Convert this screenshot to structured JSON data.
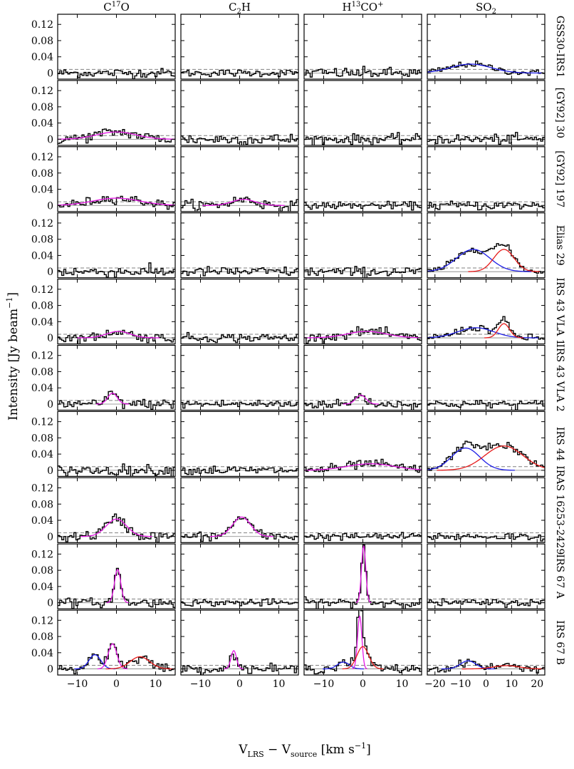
{
  "chart_data": {
    "type": "line",
    "grid": false,
    "ylabel": "Intensity [Jy beam^-1]",
    "xlabel": "V_LRS − V_source [km s^-1]",
    "columns": [
      {
        "label": "C17O",
        "xlim": [
          -15,
          15
        ],
        "xticks": [
          -10,
          0,
          10
        ],
        "xtick_labels": [
          "−10",
          "0",
          "10"
        ]
      },
      {
        "label": "C2H",
        "xlim": [
          -15,
          15
        ],
        "xticks": [
          -10,
          0,
          10
        ],
        "xtick_labels": [
          "−10",
          "0",
          "10"
        ]
      },
      {
        "label": "H13CO+",
        "xlim": [
          -15,
          15
        ],
        "xticks": [
          -10,
          0,
          10
        ],
        "xtick_labels": [
          "−10",
          "0",
          "10"
        ]
      },
      {
        "label": "SO2",
        "xlim": [
          -23,
          23
        ],
        "xticks": [
          -20,
          -10,
          0,
          10,
          20
        ],
        "xtick_labels": [
          "−20",
          "−10",
          "0",
          "10",
          "20"
        ]
      }
    ],
    "ylim": [
      -0.015,
      0.145
    ],
    "yticks": [
      0,
      0.04,
      0.08,
      0.12
    ],
    "ytick_labels": [
      "0",
      "0.04",
      "0.08",
      "0.12"
    ],
    "rows": [
      {
        "source": "GSS30-IRS1",
        "noise": [
          0.01,
          0.008,
          0.012,
          0.007
        ],
        "fits": [
          [],
          [],
          [],
          [
            {
              "color": "blue",
              "amp": 0.022,
              "center": -6,
              "sigma": 8
            }
          ]
        ]
      },
      {
        "source": "[GY92] 30",
        "noise": [
          0.012,
          0.013,
          0.011,
          0.011
        ],
        "fits": [
          [
            {
              "color": "magenta",
              "amp": 0.018,
              "center": 0,
              "sigma": 5
            }
          ],
          [],
          [],
          []
        ]
      },
      {
        "source": "[GY92] 197",
        "noise": [
          0.01,
          0.012,
          0.008,
          0.01
        ],
        "fits": [
          [
            {
              "color": "magenta",
              "amp": 0.018,
              "center": 0,
              "sigma": 6
            }
          ],
          [
            {
              "color": "magenta",
              "amp": 0.015,
              "center": 1,
              "sigma": 3
            }
          ],
          [],
          []
        ]
      },
      {
        "source": "Elias 29",
        "noise": [
          0.012,
          0.011,
          0.011,
          0.007
        ],
        "fits": [
          [],
          [],
          [],
          [
            {
              "color": "blue",
              "amp": 0.055,
              "center": -5,
              "sigma": 6.5
            },
            {
              "color": "red",
              "amp": 0.055,
              "center": 7,
              "sigma": 4
            }
          ]
        ]
      },
      {
        "source": "IRS 43 VLA 1",
        "noise": [
          0.01,
          0.01,
          0.01,
          0.008
        ],
        "fits": [
          [
            {
              "color": "magenta",
              "amp": 0.016,
              "center": 0.5,
              "sigma": 3
            }
          ],
          [],
          [
            {
              "color": "magenta",
              "amp": 0.016,
              "center": 1,
              "sigma": 5
            }
          ],
          [
            {
              "color": "blue",
              "amp": 0.025,
              "center": -4,
              "sigma": 7
            },
            {
              "color": "red",
              "amp": 0.035,
              "center": 7,
              "sigma": 2.2
            }
          ]
        ]
      },
      {
        "source": "IRS 43 VLA 2",
        "noise": [
          0.011,
          0.01,
          0.01,
          0.009
        ],
        "fits": [
          [
            {
              "color": "magenta",
              "amp": 0.027,
              "center": -1,
              "sigma": 1.2
            }
          ],
          [],
          [
            {
              "color": "magenta",
              "amp": 0.022,
              "center": -0.5,
              "sigma": 1.3
            }
          ],
          []
        ]
      },
      {
        "source": "IRS 44",
        "noise": [
          0.012,
          0.01,
          0.01,
          0.008
        ],
        "fits": [
          [],
          [],
          [
            {
              "color": "magenta",
              "amp": 0.016,
              "center": 2,
              "sigma": 6
            }
          ],
          [
            {
              "color": "blue",
              "amp": 0.055,
              "center": -8,
              "sigma": 5.5
            },
            {
              "color": "red",
              "amp": 0.06,
              "center": 7,
              "sigma": 7.5
            }
          ]
        ]
      },
      {
        "source": "IRAS 16253-2429",
        "noise": [
          0.012,
          0.01,
          0.008,
          0.009
        ],
        "fits": [
          [
            {
              "color": "magenta",
              "amp": 0.043,
              "center": 0,
              "sigma": 2.6
            }
          ],
          [
            {
              "color": "magenta",
              "amp": 0.048,
              "center": 0.5,
              "sigma": 2.3
            }
          ],
          [],
          []
        ]
      },
      {
        "source": "IRS 67 A",
        "noise": [
          0.01,
          0.008,
          0.01,
          0.008
        ],
        "fits": [
          [
            {
              "color": "magenta",
              "amp": 0.082,
              "center": 0.3,
              "sigma": 0.8
            }
          ],
          [],
          [
            {
              "color": "magenta",
              "amp": 0.14,
              "center": 0.2,
              "sigma": 0.55
            }
          ],
          []
        ]
      },
      {
        "source": "IRS 67 B",
        "noise": [
          0.01,
          0.01,
          0.01,
          0.008
        ],
        "fits": [
          [
            {
              "color": "blue",
              "amp": 0.035,
              "center": -5.5,
              "sigma": 1.5
            },
            {
              "color": "magenta",
              "amp": 0.062,
              "center": -1,
              "sigma": 1.1
            },
            {
              "color": "red",
              "amp": 0.03,
              "center": 6,
              "sigma": 2.5
            }
          ],
          [
            {
              "color": "magenta",
              "amp": 0.045,
              "center": -1.5,
              "sigma": 0.7
            }
          ],
          [
            {
              "color": "blue",
              "amp": 0.017,
              "center": -5,
              "sigma": 1.5
            },
            {
              "color": "magenta",
              "amp": 0.13,
              "center": -0.8,
              "sigma": 0.55
            },
            {
              "color": "red",
              "amp": 0.055,
              "center": 0,
              "sigma": 1.5
            }
          ],
          [
            {
              "color": "blue",
              "amp": 0.02,
              "center": -7,
              "sigma": 3
            },
            {
              "color": "red",
              "amp": 0.008,
              "center": 8,
              "sigma": 5
            }
          ]
        ]
      }
    ],
    "threshold_line": 0.009,
    "colors": {
      "blue": "#1f1fe6",
      "red": "#e61a1a",
      "magenta": "#e619e6",
      "spectrum": "#000000",
      "threshold": "#808080"
    }
  }
}
